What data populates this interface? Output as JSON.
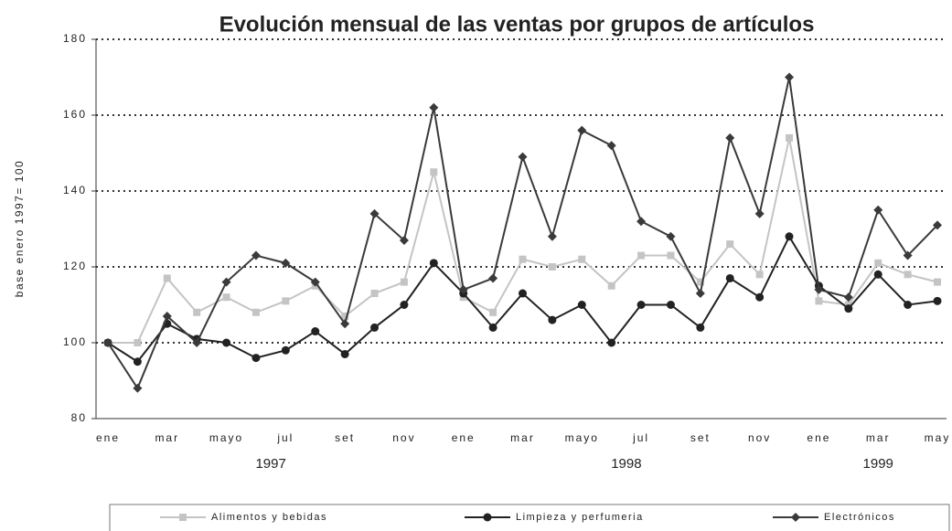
{
  "chart_data": {
    "type": "line",
    "title": "Evolución mensual de las ventas por grupos de artículos",
    "y_label": "base enero 1997= 100",
    "categories": [
      "ene",
      null,
      "mar",
      null,
      "mayo",
      null,
      "jul",
      null,
      "set",
      null,
      "nov",
      null,
      "ene",
      null,
      "mar",
      null,
      "mayo",
      null,
      "jul",
      null,
      "set",
      null,
      "nov",
      null,
      "ene",
      null,
      "mar",
      null,
      "may"
    ],
    "years": [
      "1997",
      "1998",
      "1999"
    ],
    "ylim": [
      80,
      180
    ],
    "yticks": [
      80,
      100,
      120,
      140,
      160,
      180
    ],
    "grid": true,
    "legend": "bottom",
    "series": [
      {
        "name": "Alimentos y bebidas",
        "color": "#c4c4c4",
        "marker": "square",
        "values": [
          100,
          100,
          117,
          108,
          112,
          108,
          111,
          115,
          107,
          113,
          116,
          145,
          112,
          108,
          122,
          120,
          122,
          115,
          123,
          123,
          116,
          126,
          118,
          154,
          111,
          110,
          121,
          118,
          116
        ]
      },
      {
        "name": "Limpieza y perfumeria",
        "color": "#222222",
        "marker": "circle",
        "values": [
          100,
          95,
          105,
          101,
          100,
          96,
          98,
          103,
          97,
          104,
          110,
          121,
          113,
          104,
          113,
          106,
          110,
          100,
          110,
          110,
          104,
          117,
          112,
          128,
          115,
          109,
          118,
          110,
          111
        ]
      },
      {
        "name": "Electrónicos",
        "color": "#3a3a3a",
        "marker": "diamond",
        "values": [
          100,
          88,
          107,
          100,
          116,
          123,
          121,
          116,
          105,
          134,
          127,
          162,
          114,
          117,
          149,
          128,
          156,
          152,
          132,
          128,
          113,
          154,
          134,
          170,
          114,
          112,
          135,
          123,
          131
        ]
      }
    ]
  }
}
